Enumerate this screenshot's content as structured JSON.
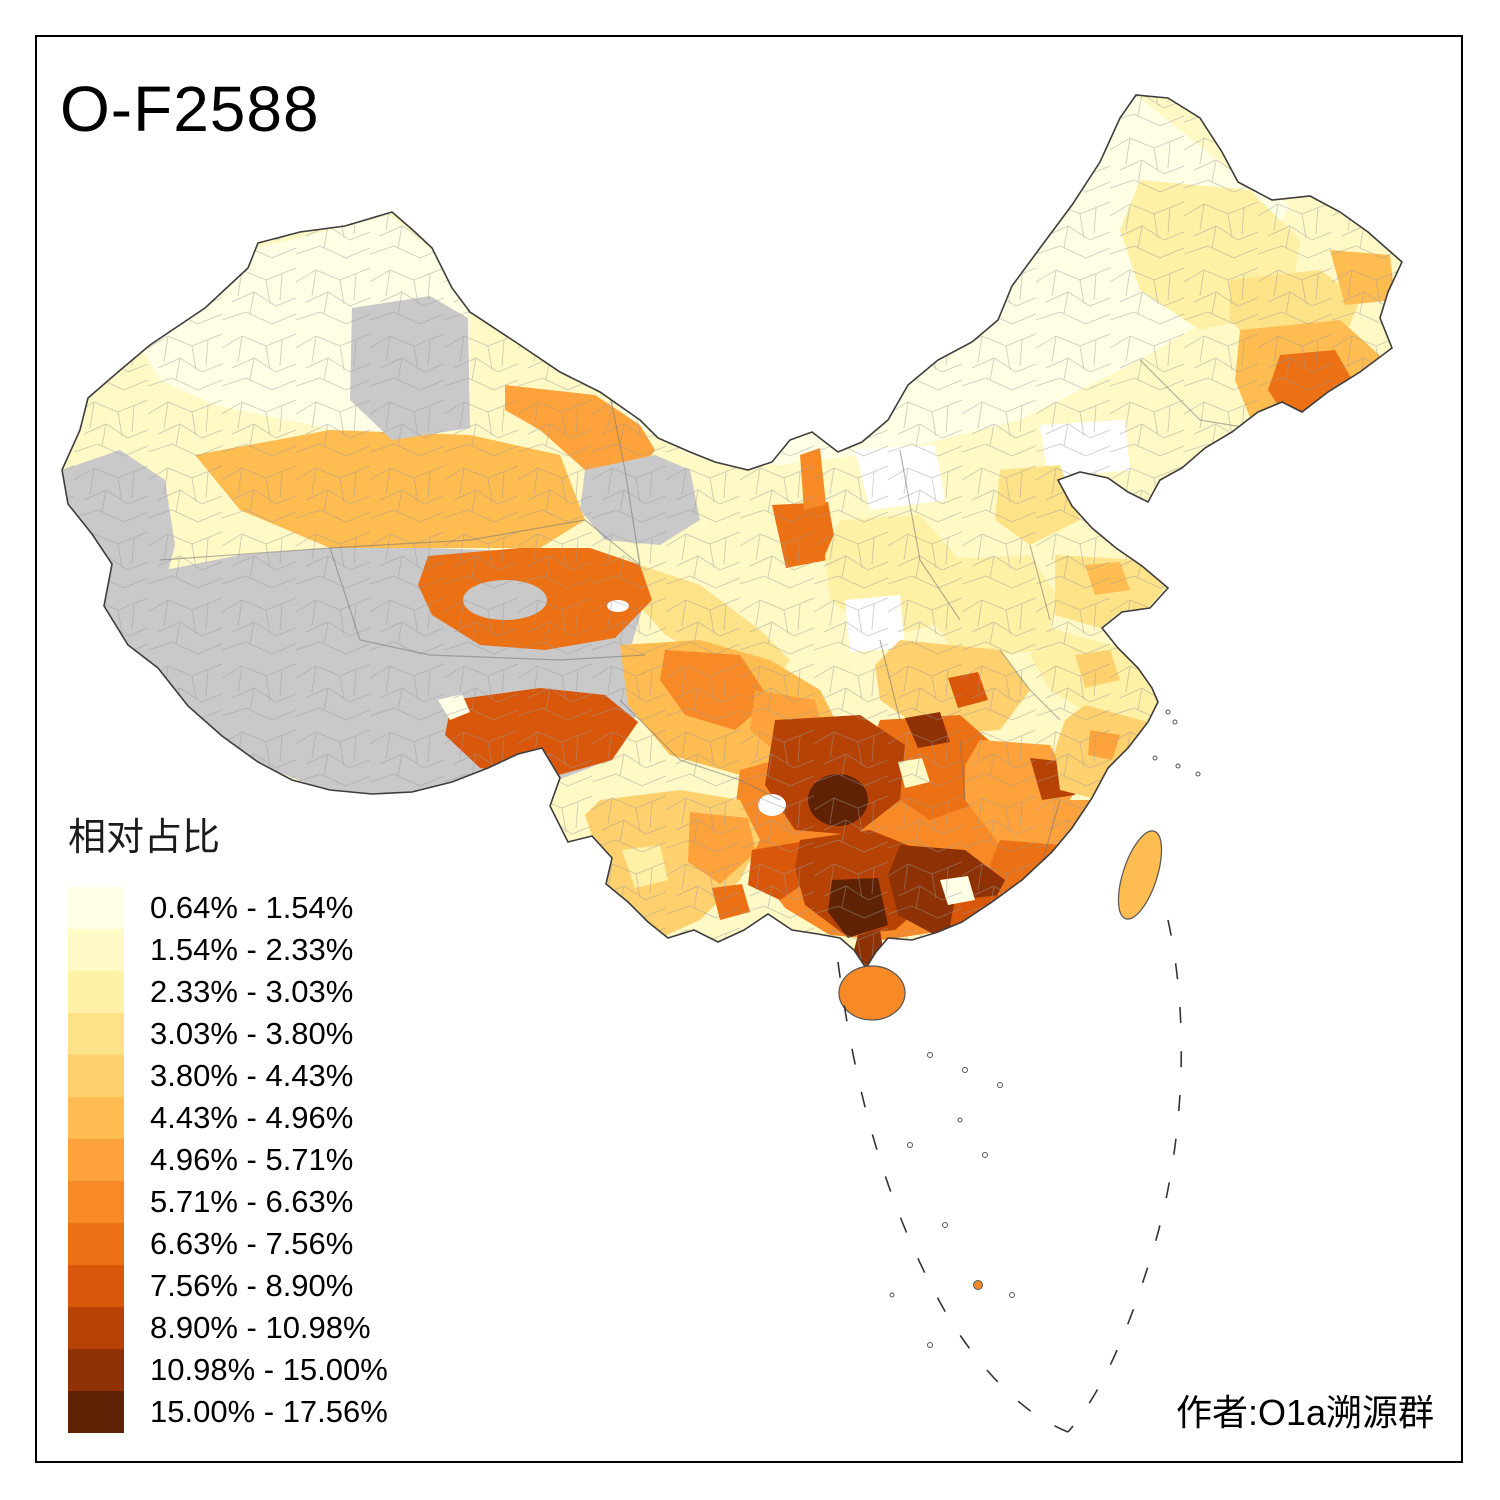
{
  "title": "O-F2588",
  "legend": {
    "title": "相对占比",
    "items": [
      {
        "label": "0.64% - 1.54%"
      },
      {
        "label": "1.54% - 2.33%"
      },
      {
        "label": "2.33% - 3.03%"
      },
      {
        "label": "3.03% - 3.80%"
      },
      {
        "label": "3.80% - 4.43%"
      },
      {
        "label": "4.43% - 4.96%"
      },
      {
        "label": "4.96% - 5.71%"
      },
      {
        "label": "5.71% - 6.63%"
      },
      {
        "label": "6.63% - 7.56%"
      },
      {
        "label": "7.56% - 8.90%"
      },
      {
        "label": "8.90% - 10.98%"
      },
      {
        "label": "10.98% - 15.00%"
      },
      {
        "label": "15.00% - 17.56%"
      }
    ]
  },
  "credit": "作者:O1a溯源群",
  "map": {
    "palette": [
      "#FFFFE5",
      "#FFF9C6",
      "#FEF0A5",
      "#FEE288",
      "#FED16E",
      "#FEBC51",
      "#FEA33B",
      "#F78A26",
      "#EC7014",
      "#D8570B",
      "#B64305",
      "#8E3104",
      "#5F2204"
    ],
    "no_data_color": "#C9C9C9",
    "white": "#FFFFFF",
    "outline_color": "#3D3D3D",
    "inner_border_color": "#8F8F8F",
    "dash_line_color": "#333333"
  }
}
